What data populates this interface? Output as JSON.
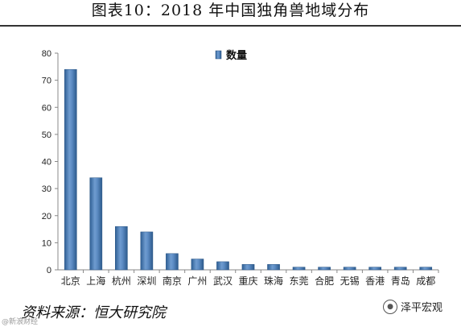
{
  "header": {
    "title": "图表10：2018 年中国独角兽地域分布"
  },
  "footer": {
    "source": "资料来源：恒大研究院",
    "watermark": "@新浪财经",
    "brand": "泽平宏观"
  },
  "chart_data": {
    "type": "bar",
    "title": "",
    "xlabel": "",
    "ylabel": "",
    "ylim": [
      0,
      80
    ],
    "yticks": [
      0,
      10,
      20,
      30,
      40,
      50,
      60,
      70,
      80
    ],
    "grid": false,
    "legend_position": "top-center",
    "categories": [
      "北京",
      "上海",
      "杭州",
      "深圳",
      "南京",
      "广州",
      "武汉",
      "重庆",
      "珠海",
      "东莞",
      "合肥",
      "无锡",
      "香港",
      "青岛",
      "成都"
    ],
    "series": [
      {
        "name": "数量",
        "color": "#4f81bd",
        "values": [
          74,
          34,
          16,
          14,
          6,
          4,
          3,
          2,
          2,
          1,
          1,
          1,
          1,
          1,
          1
        ]
      }
    ]
  }
}
